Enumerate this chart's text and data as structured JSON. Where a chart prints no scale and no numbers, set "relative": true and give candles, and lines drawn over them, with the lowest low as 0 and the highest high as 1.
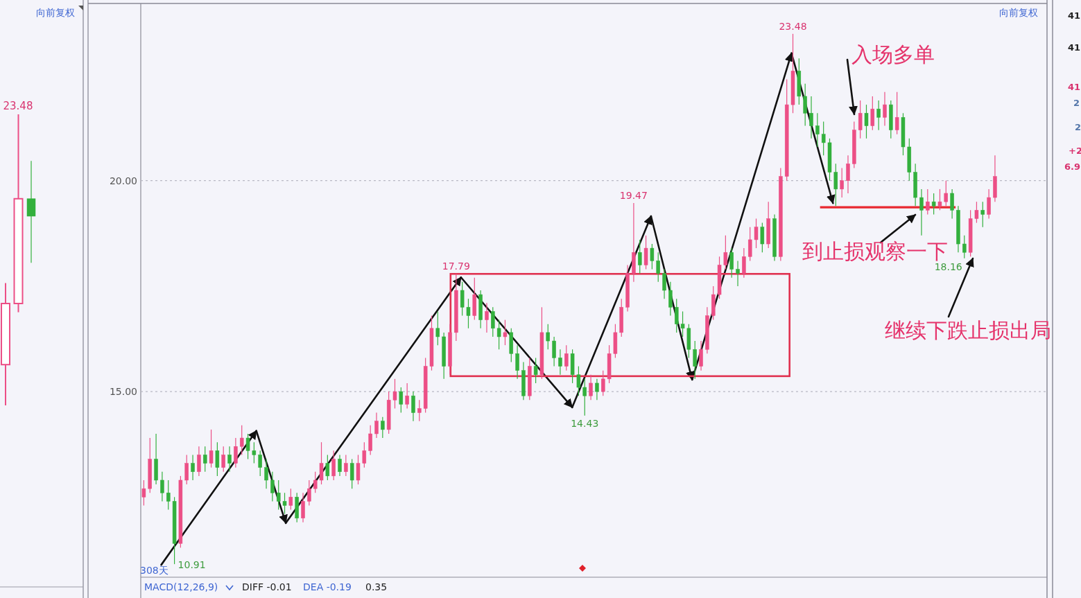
{
  "chart_data": [
    {
      "type": "candlestick",
      "relative": true,
      "categories": [
        null,
        null,
        null
      ],
      "ohlc": [
        [
          0.14,
          0.42,
          0,
          0.35
        ],
        [
          0.35,
          1,
          0.32,
          0.71
        ],
        [
          0.71,
          0.84,
          0.49,
          0.65
        ]
      ],
      "tick_labels": false,
      "annotations": [
        "23.48",
        "向前复权"
      ]
    },
    {
      "type": "candlestick",
      "categories": [
        null,
        null,
        null,
        null,
        null,
        null,
        null,
        null,
        null,
        null,
        null,
        null,
        null,
        null,
        null,
        null,
        null,
        null,
        null,
        null,
        null,
        null,
        null,
        null,
        null,
        null,
        null,
        null,
        null,
        null,
        null,
        null,
        null,
        null,
        null,
        null,
        null,
        null,
        null,
        null,
        null,
        null,
        null,
        null,
        null,
        null,
        null,
        null,
        null,
        null,
        null,
        null,
        null,
        null,
        null,
        null,
        null,
        null,
        null,
        null,
        null,
        null,
        null,
        null,
        null,
        null,
        null,
        null,
        null,
        null,
        null,
        null,
        null,
        null,
        null,
        null,
        null,
        null,
        null,
        null,
        null,
        null,
        null,
        null,
        null,
        null,
        null,
        null,
        null,
        null,
        null,
        null,
        null,
        null,
        null,
        null,
        null,
        null,
        null,
        null,
        null,
        null,
        null,
        null,
        null,
        null,
        null,
        null,
        null,
        null,
        null,
        null,
        null,
        null,
        null,
        null,
        null,
        null,
        null,
        null,
        null,
        null,
        null,
        null,
        null,
        null,
        null,
        null,
        null,
        null,
        null,
        null,
        null,
        null,
        null,
        null,
        null,
        null,
        null,
        null,
        null,
        null,
        null,
        null,
        null,
        null,
        null,
        null
      ],
      "ohlc": [
        [
          12.5,
          12.9,
          12.3,
          12.7
        ],
        [
          12.7,
          13.9,
          12.6,
          13.4
        ],
        [
          13.4,
          14.0,
          12.8,
          12.9
        ],
        [
          12.9,
          13.1,
          12.4,
          12.6
        ],
        [
          12.6,
          12.9,
          12.2,
          12.4
        ],
        [
          12.4,
          12.5,
          10.91,
          11.4
        ],
        [
          11.4,
          13.0,
          11.3,
          12.9
        ],
        [
          12.9,
          13.5,
          12.8,
          13.3
        ],
        [
          13.3,
          13.5,
          12.9,
          13.1
        ],
        [
          13.1,
          13.7,
          13.0,
          13.5
        ],
        [
          13.5,
          13.7,
          13.1,
          13.3
        ],
        [
          13.3,
          14.1,
          13.2,
          13.6
        ],
        [
          13.6,
          13.8,
          13.0,
          13.2
        ],
        [
          13.2,
          13.7,
          13.1,
          13.5
        ],
        [
          13.5,
          13.7,
          13.1,
          13.3
        ],
        [
          13.3,
          13.9,
          13.2,
          13.7
        ],
        [
          13.7,
          14.2,
          13.5,
          13.9
        ],
        [
          13.9,
          14.0,
          13.4,
          13.6
        ],
        [
          13.6,
          13.8,
          13.3,
          13.5
        ],
        [
          13.5,
          13.6,
          13.0,
          13.2
        ],
        [
          13.2,
          13.4,
          12.7,
          12.9
        ],
        [
          12.9,
          13.1,
          12.4,
          12.6
        ],
        [
          12.6,
          12.9,
          12.2,
          12.4
        ],
        [
          12.4,
          12.6,
          12.1,
          12.3
        ],
        [
          12.3,
          12.7,
          12.2,
          12.5
        ],
        [
          12.5,
          12.6,
          11.9,
          12.0
        ],
        [
          12.0,
          12.6,
          11.9,
          12.4
        ],
        [
          12.4,
          12.9,
          12.3,
          12.7
        ],
        [
          12.7,
          13.1,
          12.6,
          12.9
        ],
        [
          12.9,
          13.8,
          12.8,
          13.3
        ],
        [
          13.3,
          13.5,
          12.9,
          13.0
        ],
        [
          13.0,
          13.6,
          12.9,
          13.4
        ],
        [
          13.4,
          13.5,
          13.0,
          13.1
        ],
        [
          13.1,
          13.5,
          13.0,
          13.3
        ],
        [
          13.3,
          13.4,
          12.7,
          12.9
        ],
        [
          12.9,
          13.5,
          12.8,
          13.3
        ],
        [
          13.3,
          13.8,
          13.2,
          13.6
        ],
        [
          13.6,
          14.2,
          13.5,
          14.0
        ],
        [
          14.0,
          14.5,
          13.9,
          14.3
        ],
        [
          14.3,
          14.4,
          13.9,
          14.1
        ],
        [
          14.1,
          15.0,
          14.0,
          14.8
        ],
        [
          14.8,
          15.3,
          14.6,
          15.0
        ],
        [
          15.0,
          15.1,
          14.5,
          14.7
        ],
        [
          14.7,
          15.2,
          14.6,
          14.9
        ],
        [
          14.9,
          15.0,
          14.3,
          14.5
        ],
        [
          14.5,
          14.8,
          14.3,
          14.6
        ],
        [
          14.6,
          15.8,
          14.5,
          15.6
        ],
        [
          15.6,
          16.8,
          15.5,
          16.5
        ],
        [
          16.5,
          16.9,
          16.1,
          16.3
        ],
        [
          16.3,
          16.4,
          15.3,
          15.6
        ],
        [
          15.6,
          16.6,
          15.4,
          16.4
        ],
        [
          16.4,
          17.79,
          16.2,
          17.4
        ],
        [
          17.4,
          17.6,
          16.8,
          17.0
        ],
        [
          17.0,
          17.2,
          16.5,
          16.8
        ],
        [
          16.8,
          17.7,
          16.7,
          17.3
        ],
        [
          17.3,
          17.4,
          16.5,
          16.7
        ],
        [
          16.7,
          17.1,
          16.4,
          16.9
        ],
        [
          16.9,
          17.0,
          16.3,
          16.5
        ],
        [
          16.5,
          16.7,
          16.0,
          16.3
        ],
        [
          16.3,
          16.7,
          16.1,
          16.4
        ],
        [
          16.4,
          16.5,
          15.7,
          15.9
        ],
        [
          15.9,
          16.1,
          15.3,
          15.5
        ],
        [
          15.5,
          15.7,
          14.8,
          14.9
        ],
        [
          14.9,
          15.8,
          14.8,
          15.6
        ],
        [
          15.6,
          15.8,
          15.2,
          15.4
        ],
        [
          15.4,
          17.0,
          15.3,
          16.4
        ],
        [
          16.4,
          16.6,
          16.0,
          16.2
        ],
        [
          16.2,
          16.3,
          15.6,
          15.8
        ],
        [
          15.8,
          16.0,
          15.4,
          15.6
        ],
        [
          15.6,
          16.1,
          15.5,
          15.9
        ],
        [
          15.9,
          16.0,
          15.2,
          15.4
        ],
        [
          15.4,
          15.6,
          14.9,
          15.1
        ],
        [
          15.1,
          15.3,
          14.43,
          14.9
        ],
        [
          14.9,
          15.4,
          14.8,
          15.2
        ],
        [
          15.2,
          15.3,
          14.8,
          15.0
        ],
        [
          15.0,
          15.5,
          14.9,
          15.3
        ],
        [
          15.3,
          16.1,
          15.2,
          15.9
        ],
        [
          15.9,
          16.6,
          15.8,
          16.4
        ],
        [
          16.4,
          17.2,
          16.3,
          17.0
        ],
        [
          17.0,
          18.0,
          16.9,
          17.8
        ],
        [
          17.8,
          19.47,
          17.6,
          18.3
        ],
        [
          18.3,
          18.6,
          17.8,
          18.0
        ],
        [
          18.0,
          18.7,
          17.9,
          18.4
        ],
        [
          18.4,
          18.5,
          17.9,
          18.1
        ],
        [
          18.1,
          18.3,
          17.6,
          17.8
        ],
        [
          17.8,
          17.9,
          17.2,
          17.4
        ],
        [
          17.4,
          17.6,
          16.8,
          17.0
        ],
        [
          17.0,
          17.2,
          16.4,
          16.6
        ],
        [
          16.6,
          16.9,
          16.3,
          16.5
        ],
        [
          16.5,
          16.6,
          15.8,
          16.0
        ],
        [
          16.0,
          16.2,
          15.3,
          15.6
        ],
        [
          15.6,
          16.2,
          15.5,
          16.0
        ],
        [
          16.0,
          17.0,
          15.9,
          16.8
        ],
        [
          16.8,
          17.5,
          16.7,
          17.3
        ],
        [
          17.3,
          18.2,
          17.2,
          18.0
        ],
        [
          18.0,
          18.7,
          17.9,
          18.3
        ],
        [
          18.3,
          18.4,
          17.7,
          17.9
        ],
        [
          17.9,
          18.1,
          17.5,
          17.8
        ],
        [
          17.8,
          18.4,
          17.7,
          18.2
        ],
        [
          18.2,
          18.9,
          18.1,
          18.6
        ],
        [
          18.6,
          19.1,
          18.4,
          18.9
        ],
        [
          18.9,
          19.0,
          18.3,
          18.5
        ],
        [
          18.5,
          19.5,
          18.4,
          19.1
        ],
        [
          19.1,
          19.2,
          18.1,
          18.2
        ],
        [
          18.2,
          20.3,
          18.1,
          20.1
        ],
        [
          20.1,
          22.4,
          20.0,
          21.8
        ],
        [
          21.8,
          23.48,
          21.6,
          22.6
        ],
        [
          22.6,
          22.9,
          21.8,
          22.0
        ],
        [
          22.0,
          22.3,
          21.3,
          21.6
        ],
        [
          21.6,
          22.0,
          21.0,
          21.3
        ],
        [
          21.3,
          21.6,
          20.8,
          21.1
        ],
        [
          21.1,
          21.4,
          20.6,
          20.9
        ],
        [
          20.9,
          21.0,
          20.0,
          20.2
        ],
        [
          20.2,
          20.4,
          19.4,
          19.8
        ],
        [
          19.8,
          20.3,
          19.6,
          20.0
        ],
        [
          20.0,
          20.6,
          19.7,
          20.4
        ],
        [
          20.4,
          21.4,
          20.3,
          21.2
        ],
        [
          21.2,
          21.9,
          21.0,
          21.6
        ],
        [
          21.6,
          21.8,
          21.0,
          21.3
        ],
        [
          21.3,
          22.0,
          21.2,
          21.7
        ],
        [
          21.7,
          21.9,
          21.2,
          21.5
        ],
        [
          21.5,
          22.1,
          21.3,
          21.8
        ],
        [
          21.8,
          21.9,
          21.0,
          21.2
        ],
        [
          21.2,
          22.1,
          21.1,
          21.5
        ],
        [
          21.5,
          21.6,
          20.6,
          20.8
        ],
        [
          20.8,
          21.0,
          20.0,
          20.2
        ],
        [
          20.2,
          20.4,
          19.4,
          19.6
        ],
        [
          19.6,
          19.8,
          18.7,
          19.3
        ],
        [
          19.3,
          19.8,
          19.2,
          19.5
        ],
        [
          19.5,
          19.7,
          19.2,
          19.4
        ],
        [
          19.4,
          19.8,
          19.3,
          19.5
        ],
        [
          19.5,
          20.0,
          19.4,
          19.7
        ],
        [
          19.7,
          19.8,
          19.1,
          19.3
        ],
        [
          19.3,
          19.4,
          18.3,
          18.5
        ],
        [
          18.5,
          18.7,
          18.16,
          18.3
        ],
        [
          18.3,
          19.3,
          18.2,
          19.1
        ],
        [
          19.1,
          19.5,
          19.0,
          19.3
        ],
        [
          19.3,
          19.5,
          18.9,
          19.2
        ],
        [
          19.2,
          19.8,
          19.1,
          19.6
        ],
        [
          19.6,
          20.6,
          19.5,
          20.1
        ],
        null,
        null,
        null,
        null,
        null,
        null,
        null,
        null
      ],
      "ylim": [
        10.6,
        24.2
      ],
      "yticks": [
        {
          "value": 15,
          "label": "15.00"
        },
        {
          "value": 20,
          "label": "20.00"
        }
      ],
      "grid": "y",
      "tick_labels": "y",
      "ref_lines": [
        {
          "axis": "y",
          "value": 19.37,
          "color": "#e8282f"
        }
      ],
      "annotations": [
        "23.48",
        "19.47",
        "17.79",
        "14.43",
        "10.91",
        "18.16",
        "入场多单",
        "到止损观察一下",
        "继续下跌止损出局",
        "308天",
        "MACD(12,26,9)",
        "DIFF -0.01",
        "DEA -0.19",
        "0.35",
        "向前复权"
      ]
    },
    {
      "type": "other",
      "annotations": [
        "41",
        "41",
        "41",
        "2",
        "2",
        "+2",
        "6.9"
      ]
    }
  ]
}
